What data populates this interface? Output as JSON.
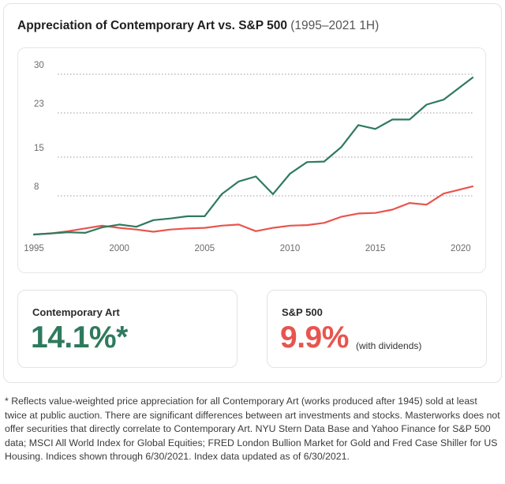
{
  "title": {
    "main": "Appreciation of Contemporary Art vs. S&P 500",
    "range": "(1995–2021 1H)"
  },
  "colors": {
    "art": "#2f7a5e",
    "sp": "#e8554e"
  },
  "chart_data": {
    "type": "line",
    "title": "Appreciation of Contemporary Art vs. S&P 500",
    "subtitle": "(1995–2021 1H)",
    "xlabel": "",
    "ylabel": "",
    "x": [
      1995,
      1996,
      1997,
      1998,
      1999,
      2000,
      2001,
      2002,
      2003,
      2004,
      2005,
      2006,
      2007,
      2008,
      2009,
      2010,
      2011,
      2012,
      2013,
      2014,
      2015,
      2016,
      2017,
      2018,
      2019,
      2020,
      2021
    ],
    "series": [
      {
        "name": "Contemporary Art",
        "values": [
          1.0,
          1.2,
          1.4,
          1.3,
          2.3,
          2.8,
          2.4,
          3.6,
          3.9,
          4.3,
          4.3,
          8.3,
          10.6,
          11.5,
          8.3,
          12.0,
          14.1,
          14.2,
          16.8,
          20.8,
          20.1,
          21.8,
          21.8,
          24.5,
          25.4,
          29.4
        ],
        "x": [
          1995,
          1996,
          1997,
          1998,
          1999,
          2000,
          2001,
          2002,
          2003,
          2004,
          2005,
          2006,
          2007,
          2008,
          2009,
          2010,
          2011,
          2012,
          2013,
          2014,
          2015,
          2016,
          2017,
          2018,
          2019,
          2020.7
        ]
      },
      {
        "name": "S&P 500",
        "values": [
          1.0,
          1.2,
          1.6,
          2.1,
          2.6,
          2.2,
          1.9,
          1.5,
          1.9,
          2.1,
          2.2,
          2.6,
          2.8,
          1.6,
          2.2,
          2.6,
          2.7,
          3.1,
          4.2,
          4.8,
          4.9,
          5.5,
          6.7,
          6.4,
          8.4,
          9.7
        ],
        "x": [
          1995,
          1996,
          1997,
          1998,
          1999,
          2000,
          2001,
          2002,
          2003,
          2004,
          2005,
          2006,
          2007,
          2008,
          2009,
          2010,
          2011,
          2012,
          2013,
          2014,
          2015,
          2016,
          2017,
          2018,
          2019,
          2020.7
        ]
      }
    ],
    "yticks": [
      8,
      15,
      23,
      30
    ],
    "xticks": [
      1995,
      2000,
      2005,
      2010,
      2015,
      2020
    ],
    "ylim": [
      1,
      30
    ],
    "xlim": [
      1995,
      2020.7
    ],
    "grid": "horizontal dotted",
    "legend": "none"
  },
  "stats": {
    "art": {
      "label": "Contemporary Art",
      "value": "14.1%*"
    },
    "sp": {
      "label": "S&P 500",
      "value": "9.9%",
      "note": "(with dividends)"
    }
  },
  "footnote": "* Reflects value-weighted price appreciation for all Contemporary Art (works produced after 1945) sold at least twice at public auction. There are significant differences between art investments and stocks. Masterworks does not offer securities that directly correlate to Contemporary Art. NYU Stern Data Base and Yahoo Finance for S&P 500 data; MSCI All World Index for Global Equities; FRED London Bullion Market for Gold and Fred Case Shiller for US Housing. Indices shown through 6/30/2021. Index data updated as of 6/30/2021."
}
